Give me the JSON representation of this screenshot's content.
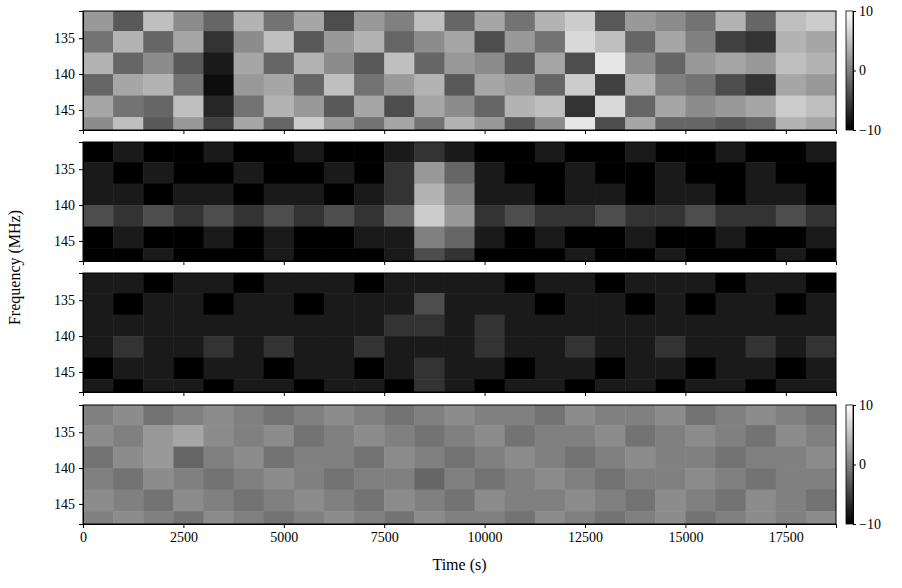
{
  "chart_data": {
    "type": "heatmap",
    "x_label": "Time (s)",
    "y_label": "Frequency (MHz)",
    "xlim": [
      0,
      18750
    ],
    "xticks": [
      0,
      2500,
      5000,
      7500,
      10000,
      12500,
      15000,
      17500
    ],
    "ylim": [
      131.2,
      147.8
    ],
    "yticks": [
      135,
      140,
      145
    ],
    "x_bins": [
      0,
      750,
      1500,
      2250,
      3000,
      3750,
      4500,
      5250,
      6000,
      6750,
      7500,
      8250,
      9000,
      9750,
      10500,
      11250,
      12000,
      12750,
      13500,
      14250,
      15000,
      15750,
      16500,
      17250,
      18000,
      18750
    ],
    "y_bins": [
      131.2,
      134,
      137,
      140,
      143,
      146,
      147.8
    ],
    "panels": [
      {
        "tick_labels": "y",
        "zlim": [
          -10,
          10
        ],
        "colorbar_ticks": [
          10,
          0,
          {
            "value": -10,
            "label": "−10"
          }
        ],
        "values": [
          [
            2,
            -3,
            5,
            1,
            -2,
            4,
            -1,
            3,
            -4,
            2,
            0,
            5,
            -2,
            3,
            -1,
            4,
            6,
            -3,
            2,
            1,
            -1,
            4,
            -2,
            5,
            6
          ],
          [
            -1,
            4,
            -2,
            3,
            -6,
            1,
            5,
            -3,
            2,
            4,
            -2,
            1,
            3,
            -4,
            2,
            -1,
            7,
            5,
            -2,
            3,
            0,
            -5,
            -6,
            4,
            3
          ],
          [
            4,
            -2,
            1,
            -3,
            -8,
            3,
            -2,
            4,
            1,
            -3,
            5,
            -2,
            2,
            1,
            -3,
            3,
            -4,
            8,
            1,
            -2,
            2,
            3,
            2,
            5,
            4
          ],
          [
            -2,
            3,
            4,
            -1,
            -9,
            2,
            3,
            -2,
            5,
            -1,
            2,
            4,
            -3,
            3,
            2,
            -2,
            6,
            -5,
            4,
            0,
            -1,
            -4,
            -6,
            3,
            2
          ],
          [
            3,
            -1,
            -2,
            5,
            -7,
            -1,
            4,
            2,
            -3,
            3,
            -4,
            3,
            1,
            -2,
            4,
            5,
            -6,
            7,
            -2,
            3,
            1,
            2,
            3,
            6,
            5
          ],
          [
            1,
            5,
            -3,
            2,
            -5,
            3,
            -2,
            6,
            2,
            -1,
            3,
            -1,
            4,
            2,
            -3,
            1,
            8,
            -4,
            3,
            -2,
            -2,
            -3,
            -2,
            4,
            3
          ]
        ]
      },
      {
        "tick_labels": "y",
        "zlim": [
          0,
          10
        ],
        "values": [
          [
            0,
            1,
            0,
            0,
            1,
            0,
            0,
            1,
            0,
            0,
            1,
            2,
            1,
            0,
            0,
            1,
            0,
            0,
            1,
            0,
            0,
            1,
            0,
            0,
            1
          ],
          [
            1,
            0,
            1,
            0,
            0,
            1,
            0,
            0,
            1,
            0,
            2,
            6,
            4,
            1,
            0,
            0,
            1,
            0,
            0,
            1,
            0,
            0,
            1,
            0,
            0
          ],
          [
            1,
            1,
            0,
            1,
            1,
            0,
            1,
            1,
            0,
            1,
            2,
            7,
            5,
            1,
            1,
            0,
            1,
            1,
            0,
            1,
            1,
            0,
            1,
            1,
            0
          ],
          [
            3,
            2,
            3,
            2,
            3,
            2,
            3,
            2,
            3,
            2,
            4,
            8,
            6,
            2,
            3,
            2,
            2,
            3,
            2,
            2,
            3,
            2,
            2,
            3,
            2
          ],
          [
            0,
            1,
            0,
            0,
            1,
            0,
            1,
            0,
            0,
            1,
            1,
            5,
            4,
            1,
            0,
            1,
            0,
            0,
            1,
            0,
            0,
            1,
            0,
            0,
            1
          ],
          [
            0,
            0,
            1,
            0,
            0,
            0,
            1,
            0,
            0,
            0,
            1,
            3,
            2,
            0,
            0,
            0,
            1,
            0,
            0,
            1,
            0,
            0,
            0,
            1,
            0
          ]
        ]
      },
      {
        "tick_labels": "y",
        "zlim": [
          0,
          10
        ],
        "values": [
          [
            1,
            1,
            0,
            1,
            1,
            0,
            1,
            1,
            1,
            0,
            1,
            1,
            1,
            1,
            0,
            1,
            1,
            0,
            1,
            1,
            1,
            0,
            1,
            1,
            0
          ],
          [
            1,
            0,
            1,
            1,
            0,
            1,
            1,
            0,
            1,
            1,
            1,
            3,
            1,
            1,
            1,
            0,
            1,
            1,
            0,
            1,
            0,
            1,
            1,
            0,
            1
          ],
          [
            1,
            1,
            1,
            1,
            1,
            1,
            1,
            1,
            1,
            1,
            2,
            2,
            1,
            2,
            1,
            1,
            1,
            1,
            1,
            1,
            1,
            1,
            1,
            1,
            1
          ],
          [
            1,
            2,
            1,
            1,
            2,
            1,
            2,
            1,
            1,
            2,
            1,
            1,
            1,
            2,
            1,
            1,
            2,
            1,
            1,
            2,
            1,
            1,
            2,
            1,
            2
          ],
          [
            0,
            1,
            1,
            0,
            1,
            1,
            0,
            1,
            1,
            0,
            1,
            2,
            1,
            1,
            0,
            1,
            1,
            0,
            1,
            1,
            0,
            1,
            1,
            0,
            1
          ],
          [
            1,
            0,
            1,
            1,
            0,
            1,
            1,
            0,
            1,
            1,
            0,
            2,
            1,
            0,
            1,
            1,
            0,
            1,
            1,
            0,
            1,
            1,
            0,
            1,
            1
          ]
        ]
      },
      {
        "zlim": [
          -10,
          10
        ],
        "colorbar_ticks": [
          10,
          0,
          {
            "value": -10,
            "label": "−10"
          }
        ],
        "values": [
          [
            0,
            1,
            -1,
            0,
            1,
            0,
            -1,
            0,
            1,
            0,
            -1,
            0,
            1,
            0,
            0,
            -1,
            1,
            0,
            0,
            1,
            -1,
            0,
            1,
            0,
            -1
          ],
          [
            1,
            0,
            2,
            3,
            1,
            0,
            1,
            -1,
            0,
            1,
            0,
            -1,
            0,
            1,
            -1,
            0,
            0,
            1,
            -1,
            0,
            1,
            0,
            -1,
            1,
            0
          ],
          [
            -1,
            1,
            2,
            -2,
            0,
            1,
            -1,
            0,
            0,
            -1,
            1,
            0,
            -1,
            0,
            1,
            0,
            -1,
            0,
            1,
            0,
            0,
            -1,
            0,
            0,
            1
          ],
          [
            0,
            -1,
            1,
            0,
            -1,
            0,
            1,
            0,
            -1,
            0,
            0,
            -2,
            0,
            -1,
            0,
            1,
            0,
            -1,
            0,
            0,
            1,
            0,
            -1,
            0,
            0
          ],
          [
            1,
            0,
            -1,
            1,
            0,
            -1,
            0,
            1,
            0,
            -1,
            1,
            0,
            -1,
            1,
            0,
            0,
            1,
            0,
            -1,
            1,
            0,
            -1,
            1,
            0,
            -1
          ],
          [
            0,
            1,
            0,
            -1,
            1,
            0,
            -1,
            0,
            1,
            0,
            -1,
            1,
            0,
            0,
            -1,
            1,
            0,
            -1,
            0,
            1,
            -1,
            0,
            1,
            0,
            1
          ]
        ]
      }
    ]
  }
}
